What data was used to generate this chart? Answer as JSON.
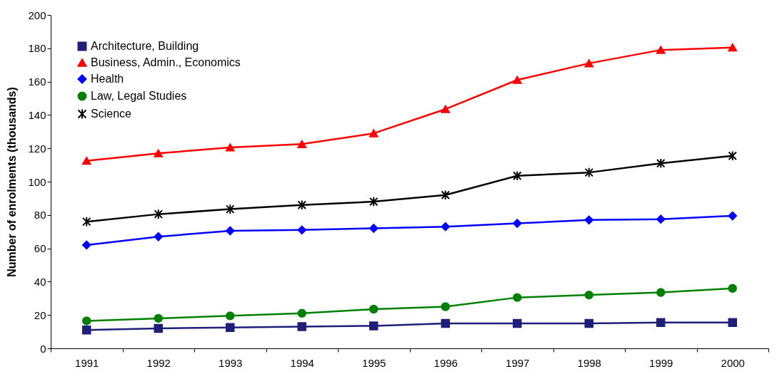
{
  "chart_data": {
    "type": "line",
    "ylabel": "Number of enrolments (thousands)",
    "categories": [
      "1991",
      "1992",
      "1993",
      "1994",
      "1995",
      "1996",
      "1997",
      "1998",
      "1999",
      "2000"
    ],
    "series": [
      {
        "name": "Architecture, Building",
        "color": "#1f1f7a",
        "marker": "square",
        "values": [
          11,
          12,
          12.5,
          13,
          13.5,
          15,
          15,
          15,
          15.5,
          15.5
        ]
      },
      {
        "name": "Business, Admin., Economics",
        "color": "#ff0000",
        "marker": "triangle",
        "values": [
          112.5,
          117,
          120.5,
          122.5,
          129,
          143.5,
          161,
          171,
          179,
          180.5
        ]
      },
      {
        "name": "Health",
        "color": "#0000ff",
        "marker": "diamond",
        "values": [
          62,
          67,
          70.5,
          71,
          72,
          73,
          75,
          77,
          77.5,
          79.5
        ]
      },
      {
        "name": "Law, Legal Studies",
        "color": "#008000",
        "marker": "circle",
        "values": [
          16.5,
          18,
          19.5,
          21,
          23.5,
          25,
          30.5,
          32,
          33.5,
          36
        ]
      },
      {
        "name": "Science",
        "color": "#000000",
        "marker": "cross",
        "values": [
          76,
          80.5,
          83.5,
          86,
          88,
          92,
          103.5,
          105.5,
          111,
          115.5
        ]
      }
    ],
    "ylim": [
      0,
      200
    ],
    "yticks": [
      0,
      20,
      40,
      60,
      80,
      100,
      120,
      140,
      160,
      180,
      200
    ],
    "grid": false,
    "legend": "top left",
    "line_style": "solid"
  }
}
